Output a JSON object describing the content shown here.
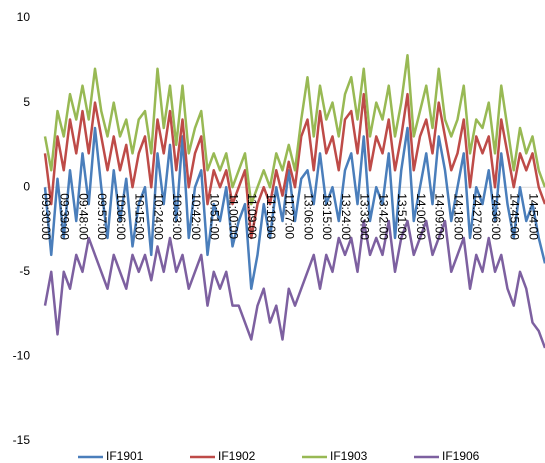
{
  "chart_data": {
    "type": "line",
    "categories": [
      "09:30:00",
      null,
      null,
      "09:39:00",
      null,
      null,
      "09:48:00",
      null,
      null,
      "09:57:00",
      null,
      null,
      "10:06:00",
      null,
      null,
      "10:15:00",
      null,
      null,
      "10:24:00",
      null,
      null,
      "10:33:00",
      null,
      null,
      "10:42:00",
      null,
      null,
      "10:51:00",
      null,
      null,
      "11:00:00",
      null,
      null,
      "11:09:00",
      null,
      null,
      "11:18:00",
      null,
      null,
      "11:27:00",
      null,
      null,
      "13:06:00",
      null,
      null,
      "13:15:00",
      null,
      null,
      "13:24:00",
      null,
      null,
      "13:33:00",
      null,
      null,
      "13:42:00",
      null,
      null,
      "13:51:00",
      null,
      null,
      "14:00:00",
      null,
      null,
      "14:09:00",
      null,
      null,
      "14:18:00",
      null,
      null,
      "14:27:00",
      null,
      null,
      "14:36:00",
      null,
      null,
      "14:45:00",
      null,
      null,
      "14:54:00",
      null,
      null
    ],
    "series": [
      {
        "name": "IF1901",
        "color": "#4a7ebb",
        "values": [
          0,
          -4,
          0.5,
          -3,
          1,
          -2,
          2,
          -1,
          3.5,
          0,
          -3,
          1,
          -2,
          0.5,
          -3.5,
          -1,
          0,
          -4,
          2,
          -1,
          2.5,
          -2,
          3,
          -3,
          0,
          1,
          -4,
          -1,
          -2,
          0,
          -3.5,
          -2,
          -1,
          -6,
          -4,
          -1,
          -3,
          0,
          -2,
          1,
          -2,
          0.5,
          1,
          -1,
          2,
          -1,
          0,
          -2,
          1,
          2,
          -1,
          3,
          -2,
          0,
          -1,
          2,
          -3,
          1,
          3.5,
          -2,
          0,
          2,
          -1,
          3,
          1,
          -2,
          0,
          2,
          -3,
          0,
          -1,
          1,
          -2,
          2,
          -1,
          -3,
          0,
          -2,
          -1,
          -3,
          -4.5
        ]
      },
      {
        "name": "IF1902",
        "color": "#be4b48",
        "values": [
          2,
          -1,
          3,
          1,
          4,
          2,
          4.5,
          2,
          5,
          3,
          1,
          3,
          1,
          2.5,
          0,
          2,
          3,
          0,
          4,
          2,
          4.5,
          1,
          4,
          0,
          2,
          3,
          -1,
          1,
          0,
          1,
          -1,
          0,
          1,
          -3,
          -1,
          0,
          -1,
          1,
          -0.5,
          1.5,
          0,
          3,
          4,
          1,
          4.5,
          2,
          3,
          1,
          4,
          4.5,
          2,
          5.5,
          1,
          3,
          2,
          4,
          1,
          3,
          5.5,
          1,
          3,
          4,
          2,
          5,
          3,
          1,
          2,
          4,
          0,
          3,
          2,
          3,
          0,
          4,
          2,
          0,
          2,
          1,
          2,
          0,
          -1
        ]
      },
      {
        "name": "IF1903",
        "color": "#98b954",
        "values": [
          3,
          1,
          4.5,
          3,
          5.5,
          4,
          6,
          4,
          7,
          4.5,
          3,
          5,
          3,
          4,
          2,
          4,
          4.5,
          2,
          7,
          3.5,
          6,
          2.5,
          6,
          2,
          3.5,
          4.5,
          1,
          2,
          1,
          2,
          0,
          1,
          2,
          -1,
          0,
          1,
          0,
          2,
          1,
          2.5,
          1,
          4,
          6.5,
          3,
          6,
          4,
          5,
          3,
          5.5,
          6.5,
          4,
          7,
          3,
          5,
          4,
          6,
          3,
          5,
          7.8,
          3,
          4.5,
          6,
          3.5,
          7,
          4,
          3,
          4,
          6,
          2,
          4,
          3.5,
          5,
          2,
          6,
          3.5,
          1,
          3.5,
          2,
          3,
          1,
          0
        ]
      },
      {
        "name": "IF1906",
        "color": "#7d60a0",
        "values": [
          -7,
          -5,
          -8.7,
          -5,
          -6,
          -4,
          -5,
          -3,
          -4,
          -5,
          -6,
          -4,
          -5,
          -6,
          -4,
          -5,
          -4,
          -5.5,
          -3.5,
          -5,
          -3,
          -5,
          -4,
          -6,
          -5,
          -4,
          -7,
          -5,
          -6,
          -5,
          -7,
          -7,
          -8,
          -9,
          -7,
          -6,
          -8,
          -7,
          -9,
          -6,
          -7,
          -6,
          -5,
          -4,
          -6,
          -4,
          -5,
          -3,
          -4,
          -3,
          -5,
          -2,
          -4,
          -3,
          -4,
          -2,
          -5,
          -3,
          -2,
          -4,
          -3,
          -2,
          -4,
          -3,
          -2,
          -5,
          -4,
          -3,
          -6,
          -4,
          -5,
          -3,
          -5,
          -4,
          -6,
          -7,
          -5,
          -6,
          -8,
          -8.5,
          -9.5
        ]
      }
    ],
    "ylim": [
      -15,
      10
    ],
    "yticks": [
      -15,
      -10,
      -5,
      0,
      5,
      10
    ],
    "legend": "bottom"
  }
}
